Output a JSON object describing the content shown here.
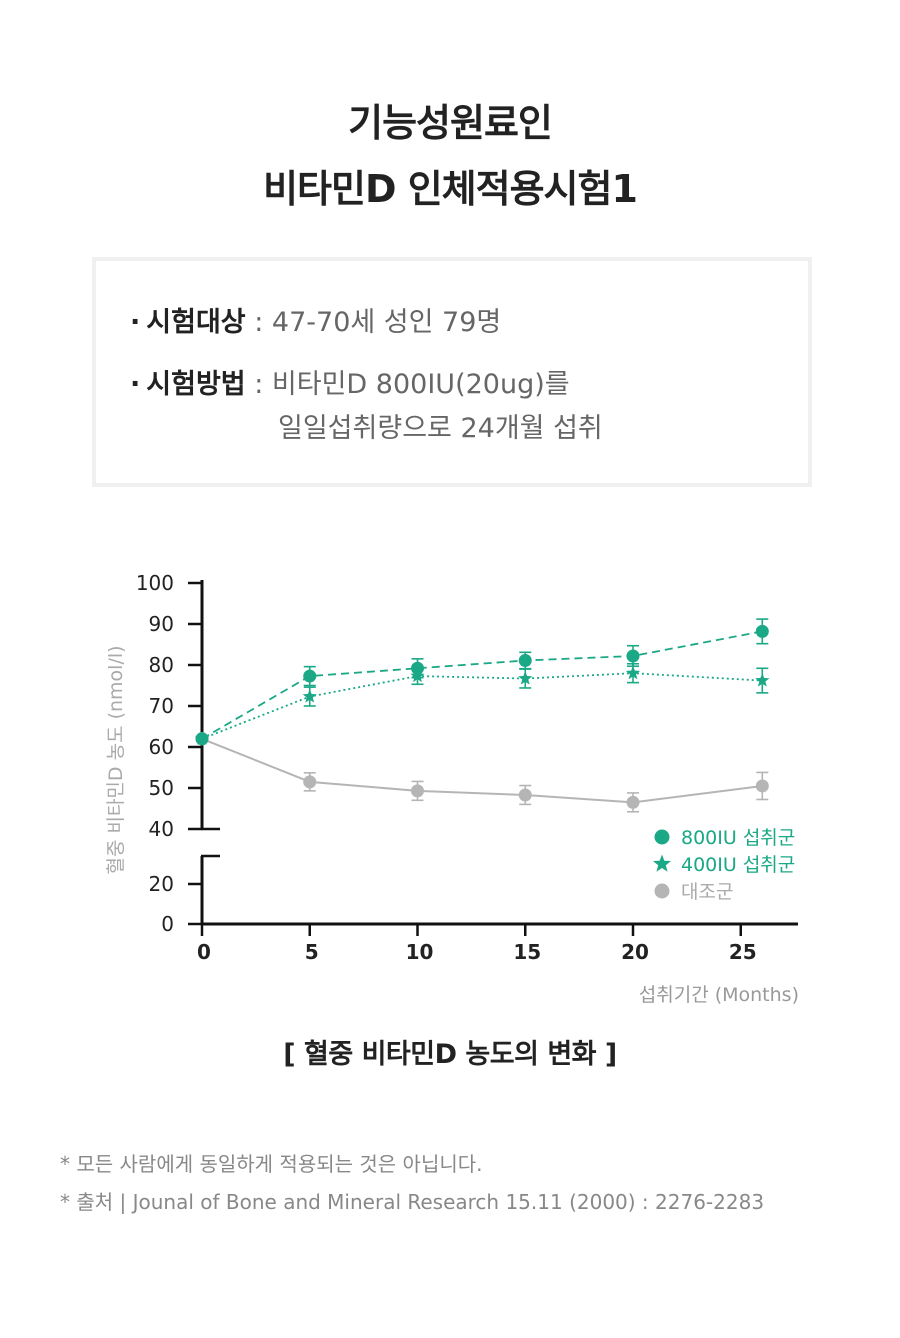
{
  "header": {
    "title_line1": "기능성원료인",
    "title_line2": "비타민D 인체적용시험1"
  },
  "info": {
    "subject_label": "시험대상",
    "subject_value": ": 47-70세 성인 79명",
    "method_label": "시험방법",
    "method_value": ": 비타민D 800IU(20ug)를",
    "method_value_line2": "일일섭취량으로 24개월 섭취",
    "bullet": "·"
  },
  "chart_data": {
    "type": "line",
    "ylabel": "혈중 비타민D 농도 (nmol/l)",
    "xlabel": "섭취기간 (Months)",
    "x_ticks": [
      "0",
      "5",
      "10",
      "15",
      "20",
      "25"
    ],
    "y_ticks": [
      "100",
      "90",
      "80",
      "70",
      "60",
      "50",
      "40",
      "20",
      "0"
    ],
    "axis_break": true,
    "series": [
      {
        "name": "800IU 섭취군",
        "marker": "circle",
        "line": "dashed",
        "color": "#1aa886",
        "x": [
          0,
          5,
          10,
          15,
          20,
          26
        ],
        "values": [
          62,
          77.3,
          79.2,
          81.1,
          82.2,
          88.2
        ],
        "err": [
          0,
          2.3,
          2.3,
          2.0,
          2.5,
          3.0
        ]
      },
      {
        "name": "400IU 섭취군",
        "marker": "star",
        "line": "dotted",
        "color": "#1aa886",
        "x": [
          0,
          5,
          10,
          15,
          20,
          26
        ],
        "values": [
          62,
          72.3,
          77.3,
          76.7,
          78.0,
          76.2
        ],
        "err": [
          0,
          2.3,
          2.0,
          2.3,
          2.3,
          3.0
        ]
      },
      {
        "name": "대조군",
        "marker": "circle",
        "line": "solid",
        "color": "#b5b5b5",
        "x": [
          0,
          5,
          10,
          15,
          20,
          26
        ],
        "values": [
          62,
          51.5,
          49.3,
          48.3,
          46.5,
          50.5
        ],
        "err": [
          0,
          2.2,
          2.3,
          2.3,
          2.3,
          3.3
        ]
      }
    ],
    "legend_position": "bottom-right",
    "caption": "[ 혈중 비타민D  농도의 변화 ]"
  },
  "notes": [
    "* 모든 사람에게 동일하게 적용되는 것은 아닙니다.",
    "* 출처 | Jounal of Bone and Mineral Research 15.11 (2000) : 2276-2283"
  ]
}
